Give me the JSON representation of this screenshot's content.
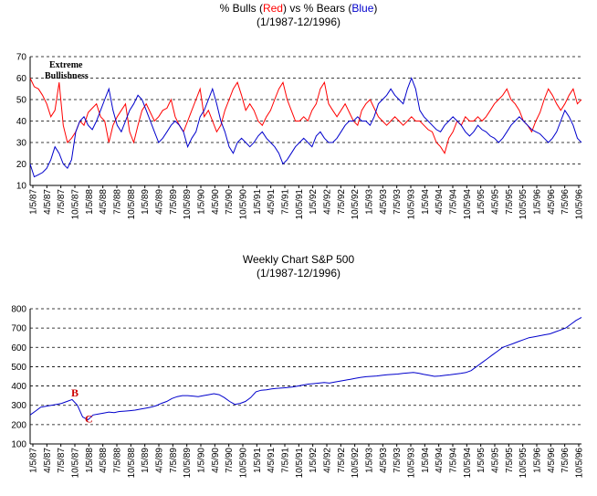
{
  "chart_data": [
    {
      "type": "line",
      "title_parts": [
        "% Bulls (",
        "Red",
        ") vs % Bears (",
        "Blue",
        ")"
      ],
      "title_colors": {
        "red": "#ff0000",
        "blue": "#0000cc"
      },
      "subtitle": "(1/1987-12/1996)",
      "ylim": [
        10,
        70
      ],
      "yticks": [
        10,
        20,
        30,
        40,
        50,
        60,
        70
      ],
      "grid": true,
      "x_labels": [
        "1/5/87",
        "4/5/87",
        "7/5/87",
        "10/5/87",
        "1/5/88",
        "4/5/88",
        "7/5/88",
        "10/5/88",
        "1/5/89",
        "4/5/89",
        "7/5/89",
        "10/5/89",
        "1/5/90",
        "4/5/90",
        "7/5/90",
        "10/5/90",
        "1/5/91",
        "4/5/91",
        "7/5/91",
        "10/5/91",
        "1/5/92",
        "4/5/92",
        "7/5/92",
        "10/5/92",
        "1/5/93",
        "4/5/93",
        "7/5/93",
        "10/5/93",
        "1/5/94",
        "4/5/94",
        "7/5/94",
        "10/5/94",
        "1/5/95",
        "4/5/95",
        "7/5/95",
        "10/5/95",
        "1/5/96",
        "4/5/96",
        "7/5/96",
        "10/5/96"
      ],
      "annotation": {
        "line1": "Extreme",
        "line2": "Bullishness",
        "x": "1/5/87",
        "y": 65
      },
      "series": [
        {
          "color": "#ff0000",
          "values": [
            60,
            56,
            55,
            52,
            48,
            42,
            45,
            58,
            38,
            30,
            32,
            35,
            40,
            38,
            44,
            46,
            48,
            42,
            40,
            30,
            38,
            42,
            45,
            48,
            35,
            30,
            38,
            45,
            48,
            44,
            40,
            42,
            45,
            46,
            50,
            42,
            38,
            35,
            40,
            45,
            50,
            55,
            42,
            45,
            40,
            35,
            38,
            45,
            50,
            55,
            58,
            52,
            45,
            48,
            45,
            40,
            38,
            42,
            45,
            50,
            55,
            58,
            50,
            45,
            40,
            40,
            42,
            40,
            45,
            48,
            55,
            58,
            48,
            45,
            42,
            45,
            48,
            44,
            40,
            38,
            45,
            48,
            50,
            46,
            42,
            40,
            38,
            40,
            42,
            40,
            38,
            40,
            42,
            40,
            40,
            38,
            36,
            35,
            30,
            28,
            25,
            32,
            35,
            40,
            38,
            42,
            40,
            40,
            42,
            40,
            42,
            45,
            48,
            50,
            52,
            55,
            50,
            48,
            45,
            40,
            38,
            35,
            40,
            44,
            50,
            55,
            52,
            48,
            45,
            48,
            52,
            55,
            48,
            50
          ]
        },
        {
          "color": "#0000cc",
          "values": [
            20,
            14,
            15,
            16,
            18,
            22,
            28,
            25,
            20,
            18,
            22,
            35,
            40,
            42,
            38,
            36,
            40,
            45,
            50,
            55,
            45,
            38,
            35,
            40,
            45,
            48,
            52,
            50,
            45,
            40,
            35,
            30,
            32,
            35,
            38,
            40,
            38,
            35,
            28,
            32,
            35,
            42,
            45,
            50,
            55,
            48,
            40,
            35,
            28,
            25,
            30,
            32,
            30,
            28,
            30,
            33,
            35,
            32,
            30,
            28,
            25,
            20,
            22,
            25,
            28,
            30,
            32,
            30,
            28,
            33,
            35,
            32,
            30,
            30,
            32,
            35,
            38,
            40,
            40,
            42,
            40,
            40,
            38,
            42,
            48,
            50,
            52,
            55,
            52,
            50,
            48,
            55,
            60,
            55,
            45,
            42,
            40,
            38,
            36,
            35,
            38,
            40,
            42,
            40,
            38,
            35,
            33,
            35,
            38,
            36,
            35,
            33,
            32,
            30,
            32,
            35,
            38,
            40,
            42,
            40,
            38,
            36,
            35,
            34,
            32,
            30,
            32,
            35,
            40,
            45,
            42,
            38,
            32,
            30
          ]
        }
      ]
    },
    {
      "type": "line",
      "title": "Weekly Chart S&P 500",
      "subtitle": "(1/1987-12/1996)",
      "ylim": [
        100,
        800
      ],
      "yticks": [
        100,
        200,
        300,
        400,
        500,
        600,
        700,
        800
      ],
      "grid": true,
      "x_labels": [
        "1/5/87",
        "4/5/87",
        "7/5/87",
        "10/5/87",
        "1/5/88",
        "4/5/88",
        "7/5/88",
        "10/5/88",
        "1/5/89",
        "4/5/89",
        "7/5/89",
        "10/5/89",
        "1/5/90",
        "4/5/90",
        "7/5/90",
        "10/5/90",
        "1/5/91",
        "4/5/91",
        "7/5/91",
        "10/5/91",
        "1/5/92",
        "4/5/92",
        "7/5/92",
        "10/5/92",
        "1/5/93",
        "4/5/93",
        "7/5/93",
        "10/5/93",
        "1/5/94",
        "4/5/94",
        "7/5/94",
        "10/5/94",
        "1/5/95",
        "4/5/95",
        "7/5/95",
        "10/5/95",
        "1/5/96",
        "4/5/96",
        "7/5/96",
        "10/5/96"
      ],
      "annotations": [
        {
          "label": "B",
          "color": "#cc0000",
          "x": "10/5/87",
          "y": 345
        },
        {
          "label": "C",
          "color": "#cc0000",
          "x": "1/5/88",
          "y": 210
        }
      ],
      "series": [
        {
          "color": "#0000cc",
          "values": [
            250,
            270,
            290,
            295,
            300,
            305,
            310,
            320,
            330,
            300,
            240,
            225,
            250,
            255,
            260,
            265,
            262,
            268,
            270,
            272,
            275,
            280,
            285,
            290,
            298,
            310,
            320,
            335,
            345,
            350,
            350,
            348,
            345,
            350,
            355,
            360,
            355,
            340,
            320,
            305,
            310,
            320,
            340,
            370,
            378,
            380,
            385,
            388,
            390,
            392,
            395,
            400,
            405,
            410,
            412,
            415,
            418,
            415,
            420,
            425,
            430,
            435,
            440,
            445,
            448,
            450,
            452,
            455,
            458,
            460,
            462,
            465,
            468,
            470,
            466,
            460,
            455,
            450,
            452,
            455,
            458,
            462,
            465,
            470,
            480,
            500,
            520,
            540,
            560,
            580,
            600,
            610,
            620,
            630,
            640,
            650,
            655,
            660,
            665,
            670,
            680,
            690,
            700,
            720,
            740,
            755
          ]
        }
      ]
    }
  ]
}
